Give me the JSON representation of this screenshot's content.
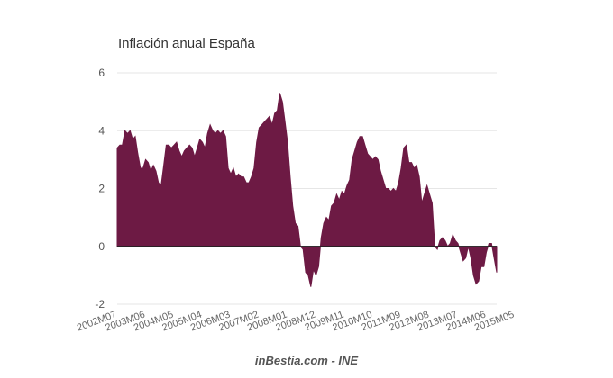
{
  "chart_data": {
    "type": "area",
    "title": "Inflación anual España",
    "source": "inBestia.com - INE",
    "xlabel": "",
    "ylabel": "",
    "ylim": [
      -2,
      6
    ],
    "yticks": [
      6,
      4,
      2,
      0,
      -2
    ],
    "grid": true,
    "legend": "none",
    "colors": {
      "area": "#6d1a44",
      "grid": "#e6e6e6",
      "zero_line": "#222222"
    },
    "x_start": "2002M07",
    "x_tick_labels": [
      "2002M07",
      "2003M06",
      "2004M05",
      "2005M04",
      "2006M03",
      "2007M02",
      "2008M01",
      "2008M12",
      "2009M11",
      "2010M10",
      "2011M09",
      "2012M08",
      "2013M07",
      "2014M06",
      "2015M05"
    ],
    "series": [
      {
        "values": [
          3.4,
          3.5,
          3.5,
          4.0,
          3.9,
          4.0,
          3.7,
          3.8,
          3.2,
          2.7,
          2.7,
          3.0,
          2.9,
          2.6,
          2.8,
          2.6,
          2.2,
          2.1,
          2.8,
          3.5,
          3.5,
          3.4,
          3.5,
          3.6,
          3.3,
          3.1,
          3.3,
          3.4,
          3.5,
          3.4,
          3.1,
          3.4,
          3.7,
          3.6,
          3.4,
          3.9,
          4.2,
          4.0,
          3.9,
          4.0,
          3.9,
          4.0,
          3.8,
          2.7,
          2.5,
          2.7,
          2.4,
          2.5,
          2.4,
          2.4,
          2.2,
          2.2,
          2.4,
          2.7,
          3.6,
          4.1,
          4.2,
          4.3,
          4.4,
          4.5,
          4.2,
          4.6,
          4.7,
          5.3,
          5.0,
          4.3,
          3.6,
          2.4,
          1.4,
          0.8,
          0.7,
          0.0,
          -0.1,
          -0.9,
          -1.0,
          -1.4,
          -0.8,
          -1.0,
          -0.7,
          0.3,
          0.8,
          1.0,
          0.9,
          1.4,
          1.5,
          1.8,
          1.6,
          1.9,
          1.8,
          2.1,
          2.3,
          3.0,
          3.3,
          3.6,
          3.8,
          3.8,
          3.5,
          3.2,
          3.1,
          3.0,
          3.1,
          3.0,
          2.6,
          2.3,
          2.0,
          2.0,
          1.9,
          2.0,
          1.9,
          2.2,
          2.7,
          3.4,
          3.5,
          2.9,
          2.9,
          2.7,
          2.8,
          2.4,
          1.5,
          1.8,
          2.1,
          1.8,
          1.5,
          0.0,
          -0.1,
          0.2,
          0.3,
          0.2,
          0.0,
          0.1,
          0.4,
          0.2,
          0.1,
          -0.2,
          -0.5,
          -0.4,
          0.0,
          -0.4,
          -1.0,
          -1.3,
          -1.2,
          -0.7,
          -0.7,
          -0.2,
          0.1,
          0.1,
          -0.4,
          -0.9
        ]
      }
    ]
  }
}
